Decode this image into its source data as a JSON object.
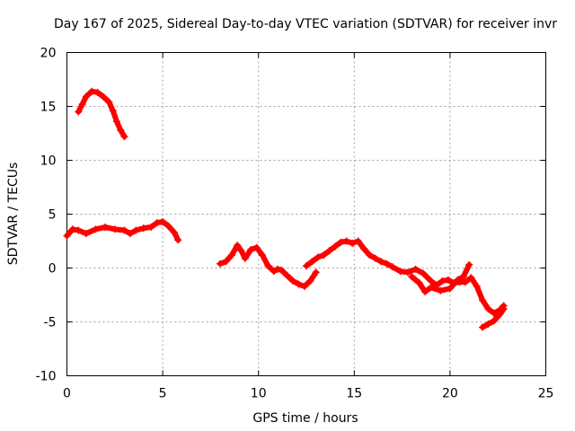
{
  "chart_data": {
    "type": "scatter",
    "title": "Day 167 of 2025, Sidereal Day-to-day VTEC variation (SDTVAR) for receiver invr",
    "xlabel": "GPS time / hours",
    "ylabel": "SDTVAR / TECUs",
    "xlim": [
      0,
      25
    ],
    "ylim": [
      -10,
      20
    ],
    "xticks": [
      0,
      5,
      10,
      15,
      20,
      25
    ],
    "yticks": [
      -10,
      -5,
      0,
      5,
      10,
      15,
      20
    ],
    "grid": true,
    "legend": "none",
    "series": [
      {
        "name": "SDTVAR",
        "color": "#ff0000",
        "segments": [
          [
            [
              0.6,
              14.5
            ],
            [
              0.8,
              15.2
            ],
            [
              1.0,
              15.9
            ],
            [
              1.3,
              16.4
            ],
            [
              1.6,
              16.3
            ],
            [
              1.9,
              15.9
            ],
            [
              2.2,
              15.4
            ],
            [
              2.4,
              14.6
            ],
            [
              2.6,
              13.6
            ],
            [
              2.8,
              12.8
            ],
            [
              3.0,
              12.2
            ]
          ],
          [
            [
              0.0,
              3.0
            ],
            [
              0.3,
              3.6
            ],
            [
              0.6,
              3.5
            ],
            [
              1.0,
              3.2
            ],
            [
              1.5,
              3.6
            ],
            [
              2.0,
              3.8
            ],
            [
              2.5,
              3.6
            ],
            [
              3.0,
              3.5
            ],
            [
              3.3,
              3.2
            ],
            [
              3.6,
              3.5
            ],
            [
              4.0,
              3.7
            ],
            [
              4.4,
              3.8
            ],
            [
              4.7,
              4.2
            ],
            [
              5.0,
              4.3
            ],
            [
              5.3,
              3.9
            ],
            [
              5.6,
              3.3
            ],
            [
              5.8,
              2.6
            ]
          ],
          [
            [
              8.0,
              0.4
            ],
            [
              8.3,
              0.6
            ],
            [
              8.6,
              1.2
            ],
            [
              8.9,
              2.1
            ],
            [
              9.1,
              1.6
            ],
            [
              9.3,
              0.9
            ],
            [
              9.6,
              1.7
            ],
            [
              9.9,
              1.9
            ],
            [
              10.2,
              1.2
            ],
            [
              10.5,
              0.2
            ],
            [
              10.8,
              -0.3
            ],
            [
              11.0,
              -0.1
            ],
            [
              11.2,
              -0.2
            ],
            [
              11.5,
              -0.7
            ],
            [
              11.8,
              -1.2
            ],
            [
              12.1,
              -1.5
            ],
            [
              12.4,
              -1.7
            ],
            [
              12.7,
              -1.2
            ],
            [
              13.0,
              -0.4
            ]
          ],
          [
            [
              12.5,
              0.2
            ],
            [
              12.8,
              0.6
            ],
            [
              13.1,
              1.0
            ],
            [
              13.4,
              1.2
            ],
            [
              13.7,
              1.6
            ],
            [
              14.0,
              2.0
            ],
            [
              14.3,
              2.4
            ],
            [
              14.6,
              2.5
            ],
            [
              14.9,
              2.3
            ],
            [
              15.2,
              2.5
            ],
            [
              15.5,
              1.8
            ],
            [
              15.8,
              1.2
            ],
            [
              16.1,
              0.9
            ],
            [
              16.4,
              0.6
            ],
            [
              16.7,
              0.4
            ],
            [
              17.0,
              0.1
            ],
            [
              17.4,
              -0.3
            ],
            [
              17.8,
              -0.4
            ],
            [
              18.2,
              -0.1
            ],
            [
              18.6,
              -0.5
            ],
            [
              19.0,
              -1.2
            ],
            [
              19.3,
              -1.6
            ],
            [
              19.6,
              -1.2
            ],
            [
              19.9,
              -1.1
            ],
            [
              20.2,
              -1.4
            ],
            [
              20.5,
              -1.3
            ],
            [
              20.8,
              -1.3
            ],
            [
              21.1,
              -0.9
            ],
            [
              21.4,
              -1.7
            ],
            [
              21.7,
              -3.0
            ],
            [
              22.0,
              -3.8
            ],
            [
              22.3,
              -4.2
            ],
            [
              22.6,
              -3.9
            ],
            [
              22.8,
              -3.5
            ]
          ],
          [
            [
              21.7,
              -5.5
            ],
            [
              22.0,
              -5.2
            ],
            [
              22.3,
              -4.9
            ],
            [
              22.6,
              -4.3
            ],
            [
              22.8,
              -3.8
            ]
          ],
          [
            [
              18.0,
              -0.8
            ],
            [
              18.4,
              -1.4
            ],
            [
              18.7,
              -2.2
            ],
            [
              19.0,
              -1.8
            ],
            [
              19.5,
              -2.1
            ],
            [
              20.0,
              -1.9
            ],
            [
              20.4,
              -1.1
            ],
            [
              20.7,
              -0.8
            ],
            [
              21.0,
              0.3
            ]
          ]
        ]
      }
    ]
  }
}
